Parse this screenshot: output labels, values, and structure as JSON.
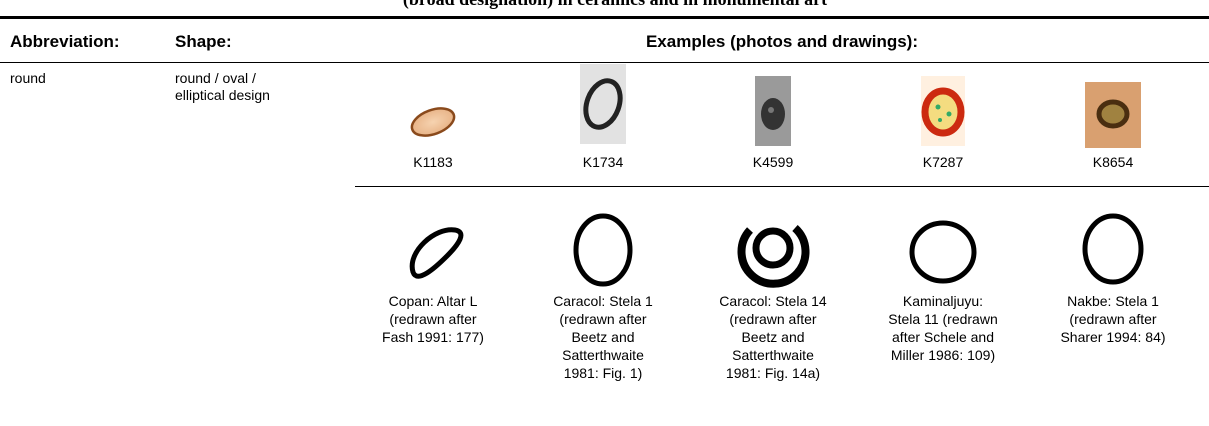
{
  "header": {
    "title": "(broad designation) in ceramics and in monumental art"
  },
  "table": {
    "columns": [
      "Abbreviation:",
      "Shape:",
      "Examples (photos and drawings):"
    ],
    "rows": [
      {
        "abbreviation": "round",
        "shape": [
          "round / oval /",
          "elliptical design"
        ],
        "photos": [
          "K1183",
          "K1734",
          "K4599",
          "K7287",
          "K8654"
        ],
        "drawings": [
          [
            "Copan: Altar L",
            "(redrawn after",
            "Fash 1991: 177)"
          ],
          [
            "Caracol: Stela 1",
            "(redrawn after",
            "Beetz and",
            "Satterthwaite",
            "1981: Fig. 1)"
          ],
          [
            "Caracol: Stela 14",
            "(redrawn after",
            "Beetz and",
            "Satterthwaite",
            "1981: Fig. 14a)"
          ],
          [
            "Kaminaljuyu:",
            "Stela 11 (redrawn",
            "after Schele and",
            "Miller 1986: 109)"
          ],
          [
            "Nakbe: Stela 1",
            "(redrawn after",
            "Sharer 1994: 84)"
          ]
        ]
      }
    ]
  }
}
